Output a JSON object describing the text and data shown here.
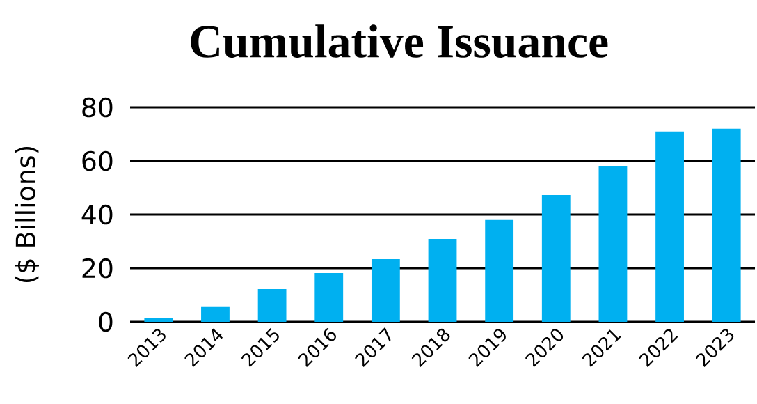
{
  "chart_data": {
    "type": "bar",
    "title": "Cumulative Issuance",
    "ylabel": "($ Billions)",
    "categories": [
      "2013",
      "2014",
      "2015",
      "2016",
      "2017",
      "2018",
      "2019",
      "2020",
      "2021",
      "2022",
      "2023"
    ],
    "values": [
      1.3,
      5.5,
      12.2,
      18.2,
      23.4,
      30.9,
      38.0,
      47.3,
      58.2,
      71.0,
      72.0
    ],
    "color": "#00b0f0",
    "ylim": [
      0,
      80
    ],
    "yticks": [
      0,
      20,
      40,
      60,
      80
    ],
    "grid": "y"
  }
}
